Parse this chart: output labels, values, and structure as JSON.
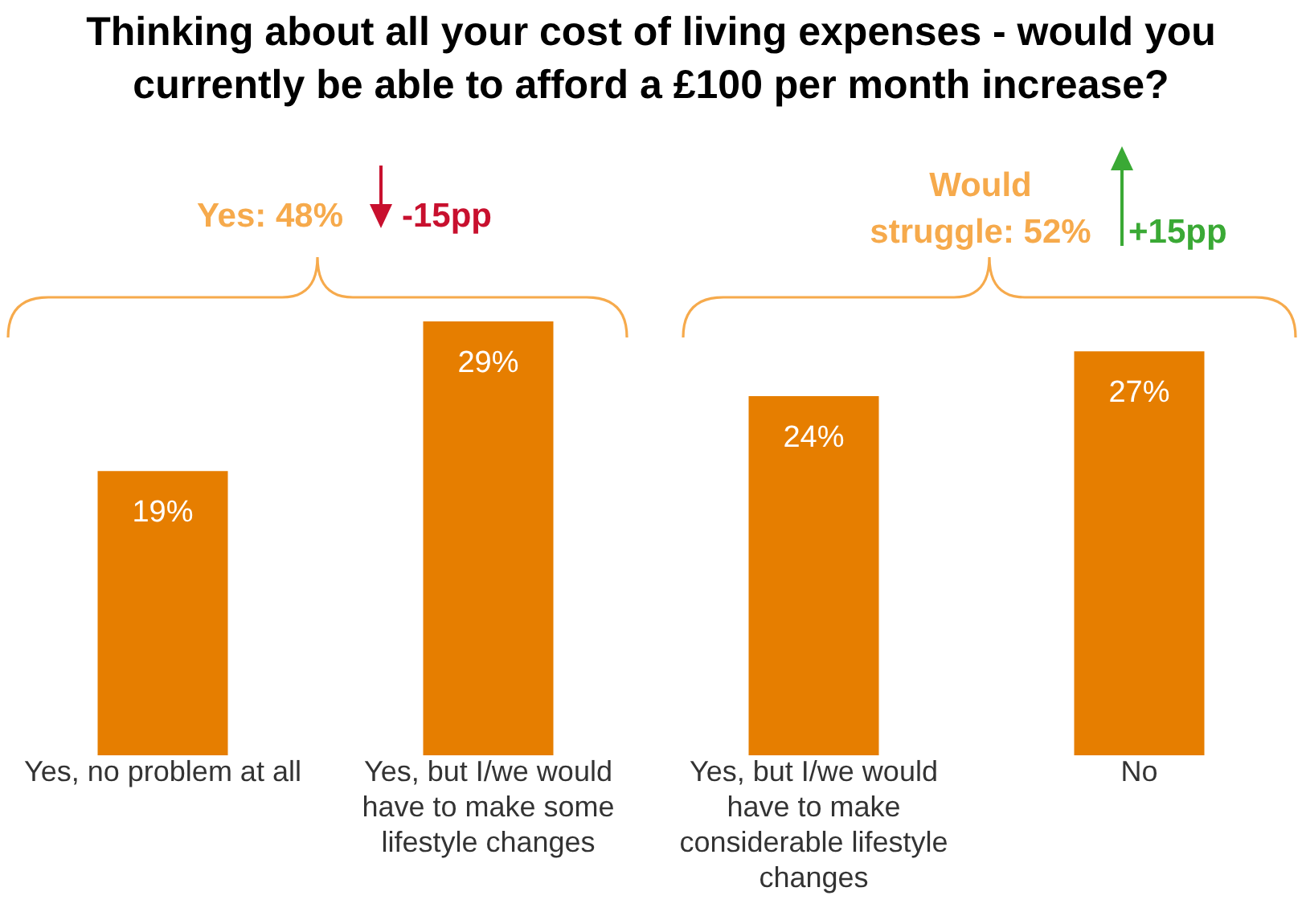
{
  "chart_data": {
    "type": "bar",
    "title": "Thinking about all your cost of living expenses - would you currently be able to afford a £100 per month increase?",
    "categories": [
      "Yes, no problem at all",
      "Yes, but I/we would have to make some lifestyle changes",
      "Yes, but I/we would have to make considerable lifestyle changes",
      "No"
    ],
    "values": [
      19,
      29,
      24,
      27
    ],
    "value_labels": [
      "19%",
      "29%",
      "24%",
      "27%"
    ],
    "color": "#e67e00",
    "tick_labels": "x",
    "annotations": [
      "Yes: 48%",
      "-15pp",
      "Would struggle: 52%",
      "+15pp"
    ]
  }
}
